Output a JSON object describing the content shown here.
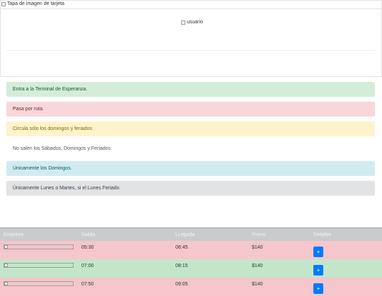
{
  "card": {
    "cover_alt": "Tapa de imagen de tarjeta",
    "user_alt": "usuario"
  },
  "alerts": [
    {
      "text": "Entra a la Terminal de Esperanza.",
      "style": "success"
    },
    {
      "text": "Pasa por ruta.",
      "style": "danger"
    },
    {
      "text": "Circula sólo los domingos y feriados.",
      "style": "warning"
    },
    {
      "text": "No salen los Sábados, Domingos y Feriados.",
      "style": "plain"
    },
    {
      "text": "Únicamente los Domingos.",
      "style": "info"
    },
    {
      "text": "Únicamente Lunes o Martes, si el Lunes Feriado.",
      "style": "secondary"
    }
  ],
  "table": {
    "headers": [
      "Empresa",
      "Salida",
      "LLegada",
      "Precio",
      "Detalles"
    ],
    "rows": [
      {
        "salida": "05:30",
        "llegada": "06:45",
        "precio": "$140",
        "button": "+",
        "style": "danger"
      },
      {
        "salida": "07:00",
        "llegada": "08:15",
        "precio": "$140",
        "button": "+",
        "style": "success"
      },
      {
        "salida": "07:50",
        "llegada": "09:05",
        "precio": "$140",
        "button": "+",
        "style": "danger"
      }
    ]
  },
  "colors": {
    "primary_button": "#007bff",
    "row_danger": "#f5c6cb",
    "row_success": "#c3e6cb",
    "header_bg": "#c9cbcd"
  }
}
